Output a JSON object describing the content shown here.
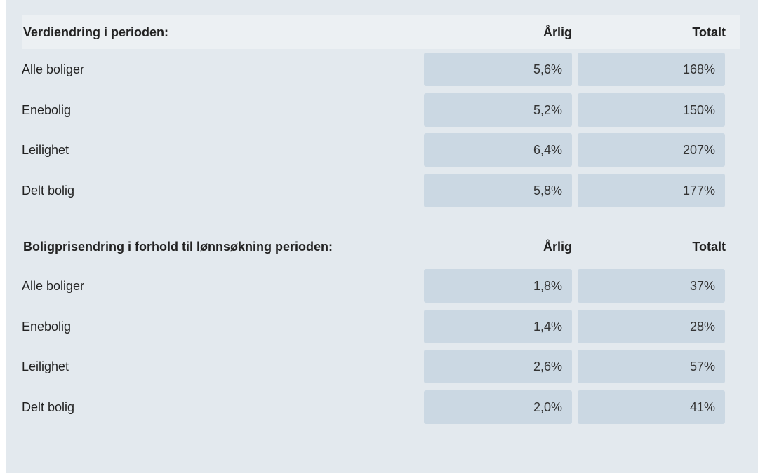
{
  "section1": {
    "title": "Verdiendring i perioden:",
    "col_annual": "Årlig",
    "col_total": "Totalt",
    "rows": [
      {
        "label": "Alle boliger",
        "annual": "5,6%",
        "total": "168%"
      },
      {
        "label": "Enebolig",
        "annual": "5,2%",
        "total": "150%"
      },
      {
        "label": "Leilighet",
        "annual": "6,4%",
        "total": "207%"
      },
      {
        "label": "Delt bolig",
        "annual": "5,8%",
        "total": "177%"
      }
    ]
  },
  "section2": {
    "title": "Boligprisendring i forhold til lønnsøkning perioden:",
    "col_annual": "Årlig",
    "col_total": "Totalt",
    "rows": [
      {
        "label": "Alle boliger",
        "annual": "1,8%",
        "total": "37%"
      },
      {
        "label": "Enebolig",
        "annual": "1,4%",
        "total": "28%"
      },
      {
        "label": "Leilighet",
        "annual": "2,6%",
        "total": "57%"
      },
      {
        "label": "Delt bolig",
        "annual": "2,0%",
        "total": "41%"
      }
    ]
  },
  "colors": {
    "panel_background": "#e3e9ee",
    "header_background": "#ecf0f3",
    "cell_background": "#cbd8e3",
    "text": "#222222"
  }
}
